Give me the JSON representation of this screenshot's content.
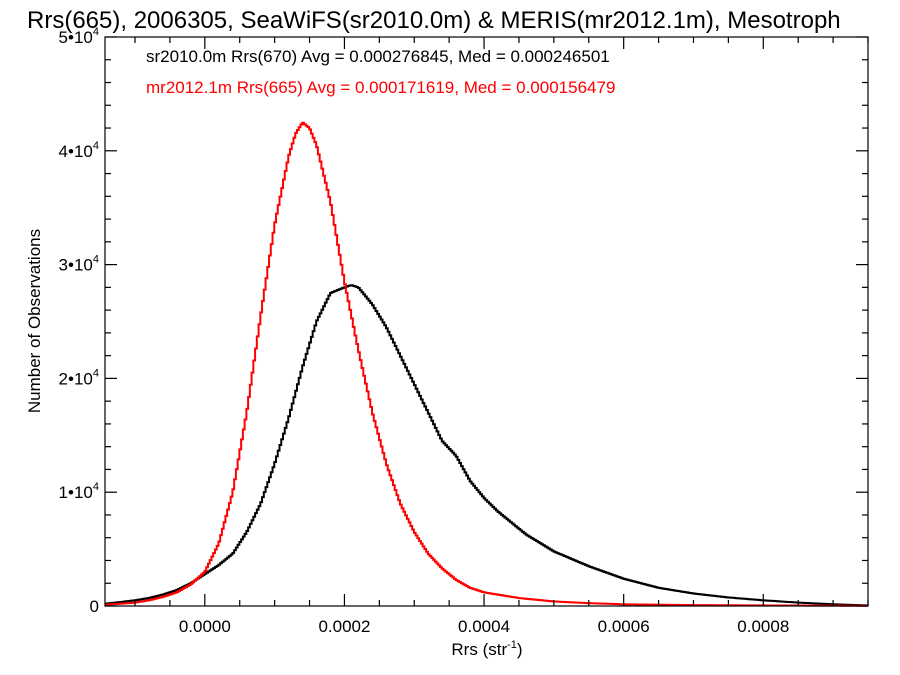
{
  "chart_data": {
    "type": "line",
    "title": "Rrs(665), 2006305, SeaWiFS(sr2010.0m) & MERIS(mr2012.1m), Mesotroph",
    "xlabel": "Rrs (str",
    "xlabel_sup": "-1",
    "xlabel_end": ")",
    "ylabel": "Number of Observations",
    "xlim": [
      -0.000143,
      0.00095
    ],
    "ylim": [
      0,
      50000
    ],
    "xticks": [
      {
        "value": 0.0,
        "label": "0.0000"
      },
      {
        "value": 0.0002,
        "label": "0.0002"
      },
      {
        "value": 0.0004,
        "label": "0.0004"
      },
      {
        "value": 0.0006,
        "label": "0.0006"
      },
      {
        "value": 0.0008,
        "label": "0.0008"
      }
    ],
    "yticks": [
      {
        "value": 0,
        "base": "0",
        "exp": ""
      },
      {
        "value": 10000,
        "base": "1•10",
        "exp": "4"
      },
      {
        "value": 20000,
        "base": "2•10",
        "exp": "4"
      },
      {
        "value": 30000,
        "base": "3•10",
        "exp": "4"
      },
      {
        "value": 40000,
        "base": "4•10",
        "exp": "4"
      },
      {
        "value": 50000,
        "base": "5•10",
        "exp": "4"
      }
    ],
    "series": [
      {
        "name": "sr2010.0m Rrs(670)",
        "legend": "sr2010.0m Rrs(670) Avg = 0.000276845, Med = 0.000246501",
        "color": "#000000",
        "x": [
          -0.000143,
          -0.00012,
          -0.0001,
          -8e-05,
          -6e-05,
          -4e-05,
          -2e-05,
          0.0,
          2e-05,
          4e-05,
          6e-05,
          8e-05,
          0.0001,
          0.00012,
          0.00014,
          0.00016,
          0.00018,
          0.0002,
          0.00021,
          0.00022,
          0.00024,
          0.00026,
          0.00028,
          0.0003,
          0.00032,
          0.00034,
          0.00036,
          0.00038,
          0.0004,
          0.00042,
          0.00044,
          0.00046,
          0.0005,
          0.00055,
          0.0006,
          0.00065,
          0.0007,
          0.00075,
          0.0008,
          0.00085,
          0.0009,
          0.00095
        ],
        "y": [
          200,
          350,
          500,
          700,
          1000,
          1400,
          2000,
          2800,
          3600,
          4600,
          6500,
          9000,
          12500,
          16500,
          21000,
          25000,
          27500,
          28000,
          28200,
          28000,
          26500,
          24500,
          22000,
          19500,
          17000,
          14500,
          13200,
          11000,
          9500,
          8300,
          7300,
          6300,
          4800,
          3500,
          2400,
          1600,
          1100,
          750,
          500,
          300,
          150,
          50
        ]
      },
      {
        "name": "mr2012.1m Rrs(665)",
        "legend": "mr2012.1m Rrs(665) Avg = 0.000171619, Med = 0.000156479",
        "color": "#ff0000",
        "x": [
          -0.000143,
          -0.00012,
          -0.0001,
          -8e-05,
          -6e-05,
          -4e-05,
          -2e-05,
          0.0,
          2e-05,
          4e-05,
          6e-05,
          8e-05,
          0.0001,
          0.00012,
          0.00013,
          0.00014,
          0.00015,
          0.00016,
          0.00018,
          0.0002,
          0.00022,
          0.00024,
          0.00026,
          0.00028,
          0.0003,
          0.00032,
          0.00034,
          0.00036,
          0.00038,
          0.0004,
          0.00045,
          0.0005,
          0.00055,
          0.0006,
          0.0007,
          0.0008,
          0.0009,
          0.00095
        ],
        "y": [
          100,
          200,
          300,
          500,
          800,
          1200,
          1900,
          3000,
          5500,
          10000,
          17000,
          25500,
          33500,
          39500,
          41500,
          42500,
          42000,
          40500,
          35500,
          28500,
          22500,
          17000,
          12500,
          9000,
          6500,
          4600,
          3300,
          2300,
          1600,
          1200,
          700,
          400,
          250,
          150,
          80,
          50,
          30,
          20
        ]
      }
    ]
  }
}
